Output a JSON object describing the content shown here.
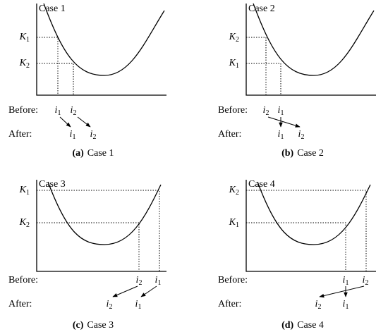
{
  "panels": [
    {
      "title": "Case 1",
      "y_labels": [
        {
          "base": "K",
          "sub": "1"
        },
        {
          "base": "K",
          "sub": "2"
        }
      ],
      "before_label": "Before:",
      "before": [
        {
          "base": "i",
          "sub": "1"
        },
        {
          "base": "i",
          "sub": "2"
        }
      ],
      "after_label": "After:",
      "after": [
        {
          "base": "i",
          "sub": "1"
        },
        {
          "base": "i",
          "sub": "2"
        }
      ],
      "caption": {
        "tag": "(a)",
        "text": "Case 1"
      }
    },
    {
      "title": "Case 2",
      "y_labels": [
        {
          "base": "K",
          "sub": "2"
        },
        {
          "base": "K",
          "sub": "1"
        }
      ],
      "before_label": "Before:",
      "before": [
        {
          "base": "i",
          "sub": "2"
        },
        {
          "base": "i",
          "sub": "1"
        }
      ],
      "after_label": "After:",
      "after": [
        {
          "base": "i",
          "sub": "1"
        },
        {
          "base": "i",
          "sub": "2"
        }
      ],
      "caption": {
        "tag": "(b)",
        "text": "Case 2"
      }
    },
    {
      "title": "Case 3",
      "y_labels": [
        {
          "base": "K",
          "sub": "1"
        },
        {
          "base": "K",
          "sub": "2"
        }
      ],
      "before_label": "Before:",
      "before": [
        {
          "base": "i",
          "sub": "2"
        },
        {
          "base": "i",
          "sub": "1"
        }
      ],
      "after_label": "After:",
      "after": [
        {
          "base": "i",
          "sub": "2"
        },
        {
          "base": "i",
          "sub": "1"
        }
      ],
      "caption": {
        "tag": "(c)",
        "text": "Case 3"
      }
    },
    {
      "title": "Case 4",
      "y_labels": [
        {
          "base": "K",
          "sub": "2"
        },
        {
          "base": "K",
          "sub": "1"
        }
      ],
      "before_label": "Before:",
      "before": [
        {
          "base": "i",
          "sub": "1"
        },
        {
          "base": "i",
          "sub": "2"
        }
      ],
      "after_label": "After:",
      "after": [
        {
          "base": "i",
          "sub": "2"
        },
        {
          "base": "i",
          "sub": "1"
        }
      ],
      "caption": {
        "tag": "(d)",
        "text": "Case 4"
      }
    }
  ]
}
